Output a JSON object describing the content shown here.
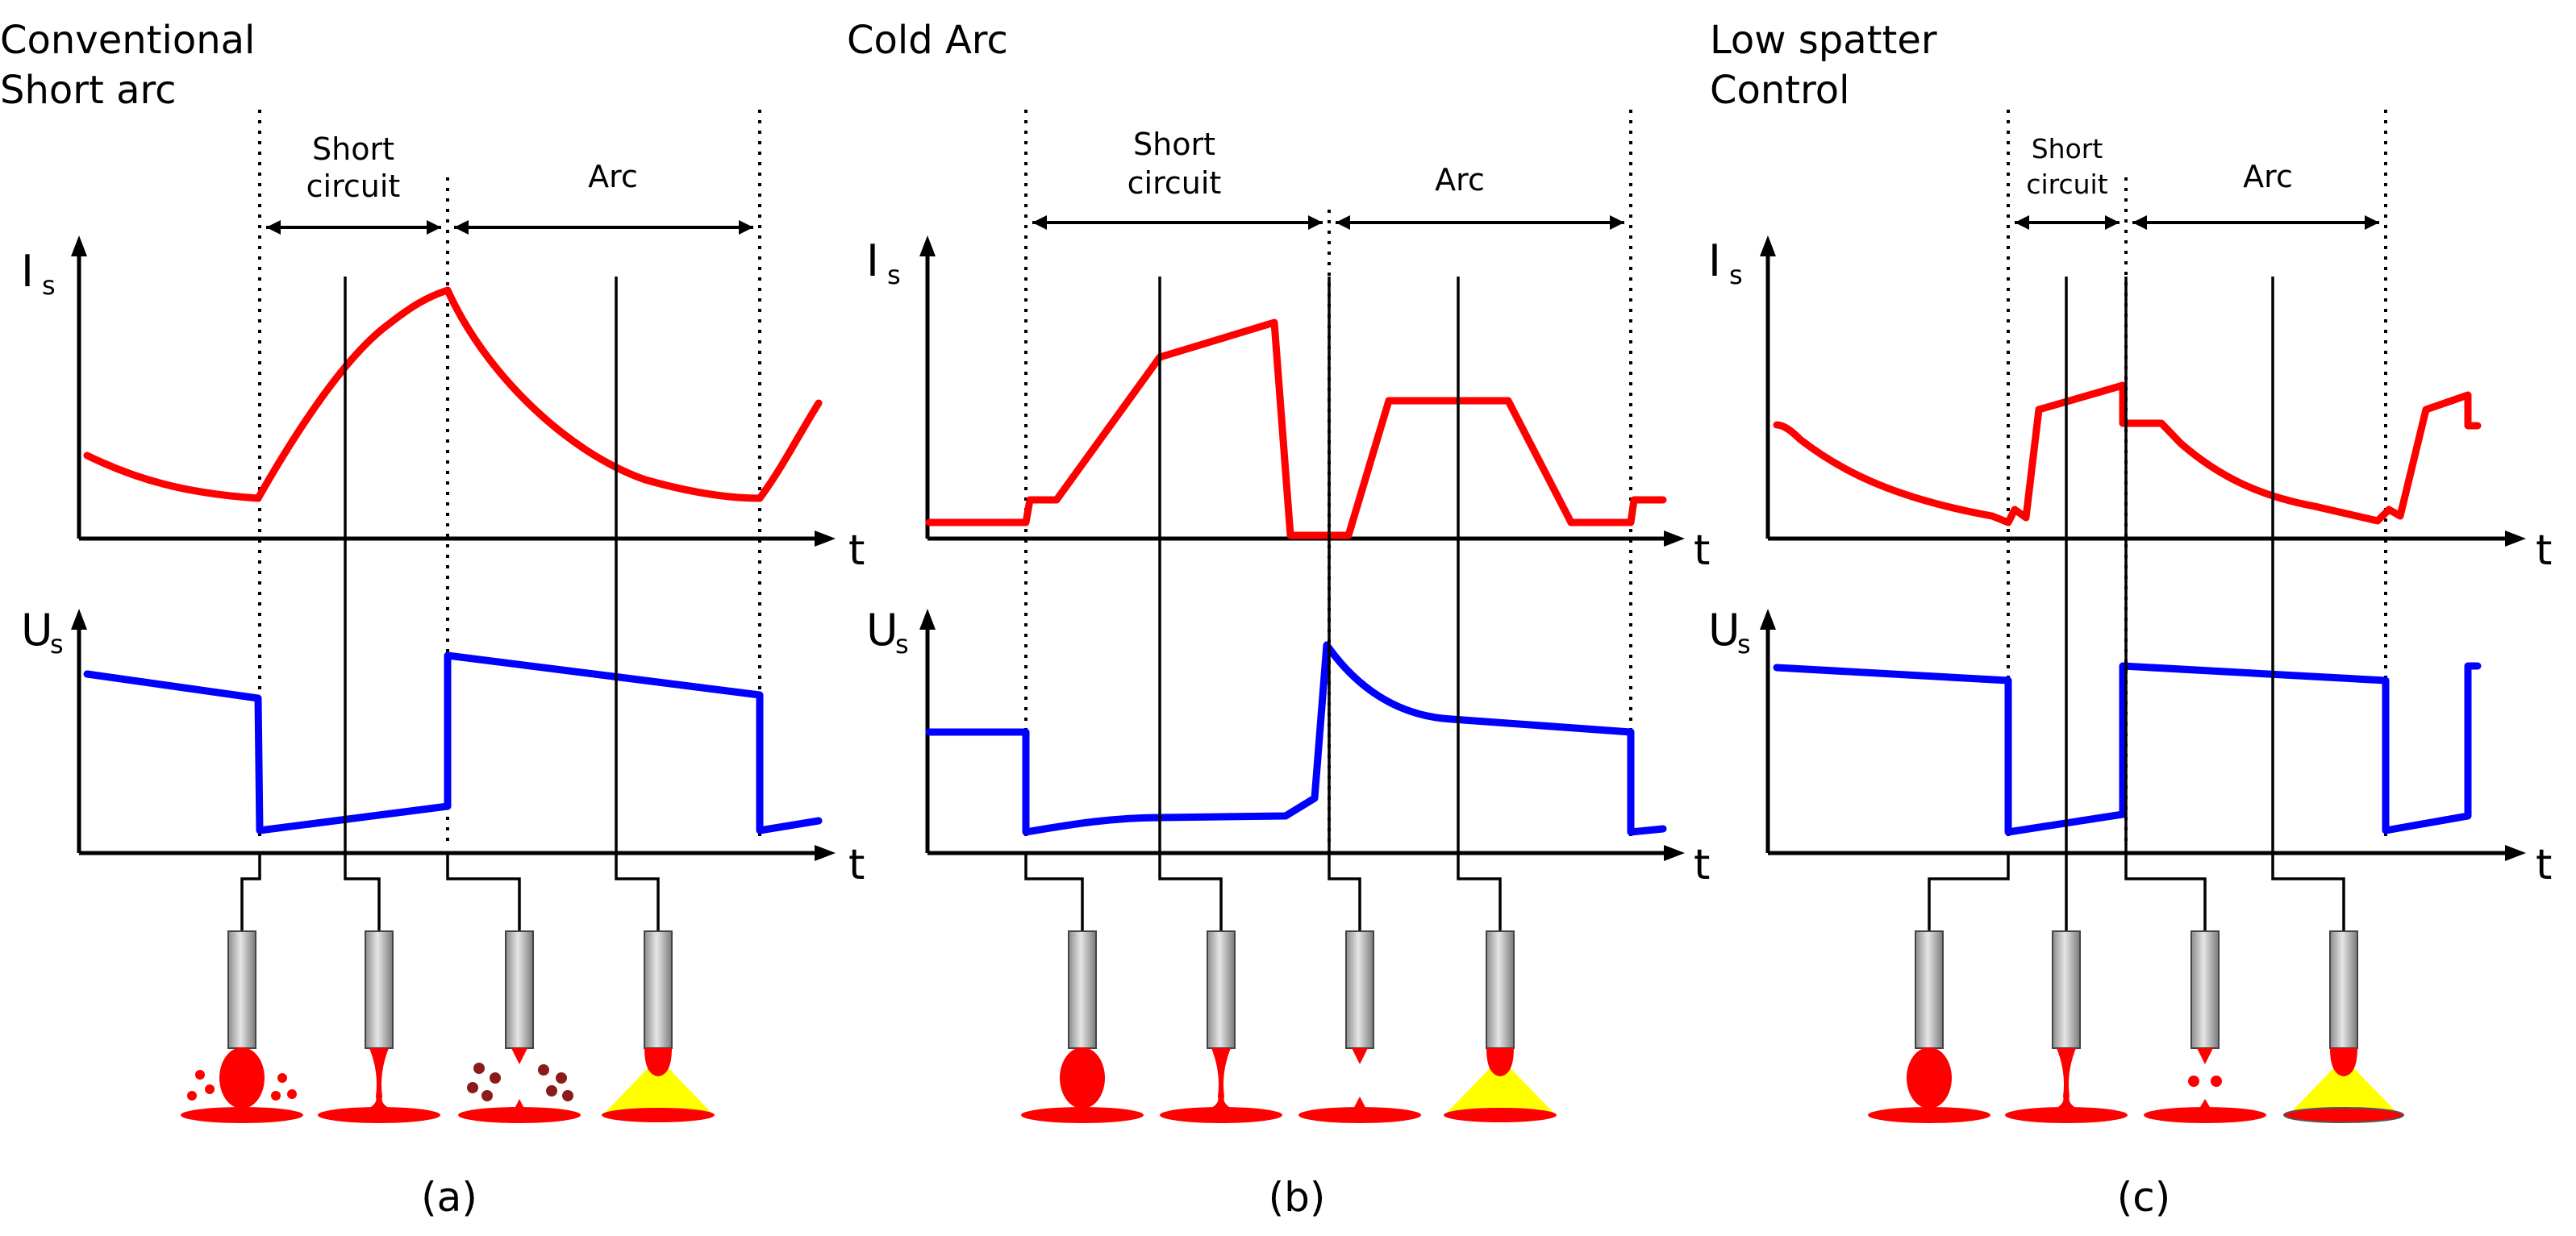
{
  "colors": {
    "current": "#ff0000",
    "voltage": "#0000ff",
    "weld_pool": "#ff0000",
    "arc_glow": "#ffff00",
    "electrode": "#b3b3b3"
  },
  "axis_labels": {
    "current": "I",
    "voltage": "U",
    "subscript": "s",
    "time": "t"
  },
  "phases": {
    "short_line1": "Short",
    "short_line2": "circuit",
    "arc": "Arc"
  },
  "panels": [
    {
      "title_line1": "Conventional",
      "title_line2": "Short arc",
      "caption": "(a)"
    },
    {
      "title_line1": "Cold Arc",
      "title_line2": "",
      "caption": "(b)"
    },
    {
      "title_line1": "Low spatter",
      "title_line2": "Control",
      "caption": "(c)"
    }
  ],
  "icons": [
    "electrode-icon",
    "droplet-icon",
    "spatter-icon",
    "arc-glow-icon",
    "weld-pool-icon"
  ]
}
